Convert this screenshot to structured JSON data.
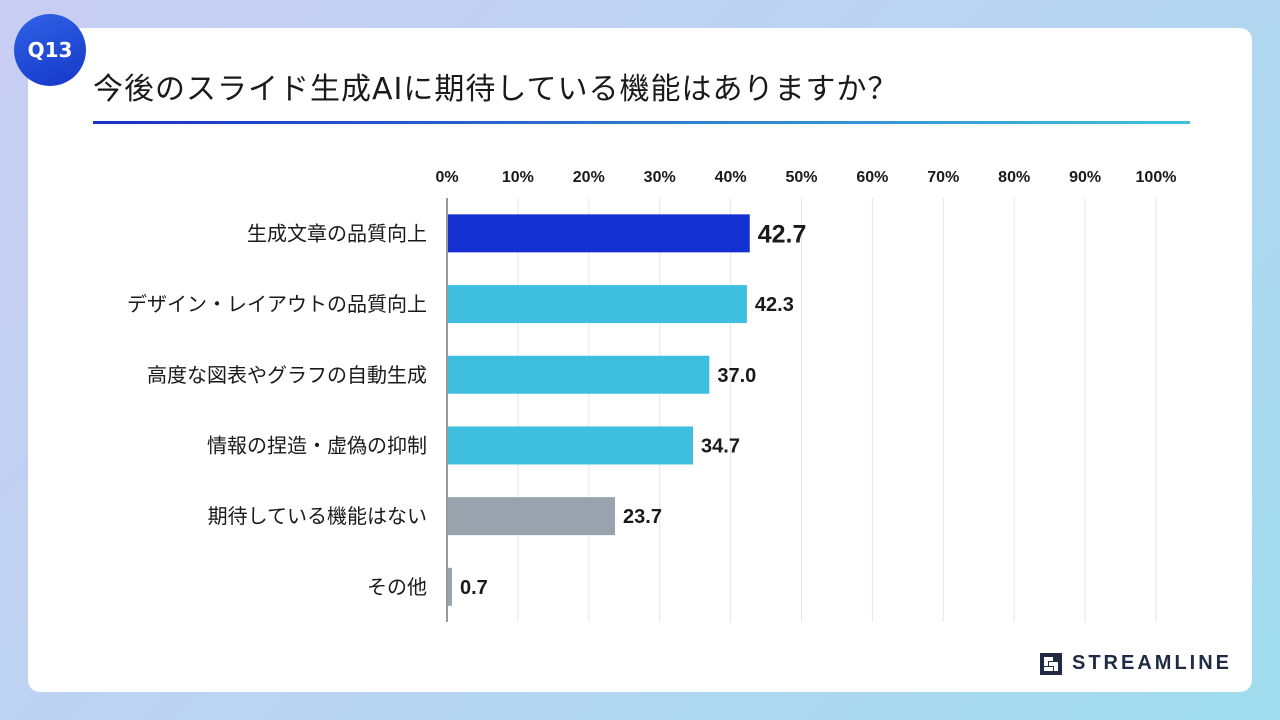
{
  "badge": "Q13",
  "title": "今後のスライド生成AIに期待している機能はありますか？",
  "brand": "STREAMLINE",
  "colors": {
    "highlight": "#1530d1",
    "primary": "#3fbfdf",
    "neutral": "#98a3ad",
    "grid": "#e6e6e6"
  },
  "chart_data": {
    "type": "bar",
    "orientation": "horizontal",
    "title": "今後のスライド生成AIに期待している機能はありますか？",
    "categories": [
      "生成文章の品質向上",
      "デザイン・レイアウトの品質向上",
      "高度な図表やグラフの自動生成",
      "情報の捏造・虚偽の抑制",
      "期待している機能はない",
      "その他"
    ],
    "values": [
      42.7,
      42.3,
      37.0,
      34.7,
      23.7,
      0.7
    ],
    "value_labels": [
      "42.7",
      "42.3",
      "37.0",
      "34.7",
      "23.7",
      "0.7"
    ],
    "bar_colors": [
      "highlight",
      "primary",
      "primary",
      "primary",
      "neutral",
      "neutral"
    ],
    "xlim": [
      0,
      100
    ],
    "xticks": [
      "0%",
      "10%",
      "20%",
      "30%",
      "40%",
      "50%",
      "60%",
      "70%",
      "80%",
      "90%",
      "100%"
    ],
    "xlabel": "",
    "ylabel": "",
    "grid": true
  }
}
